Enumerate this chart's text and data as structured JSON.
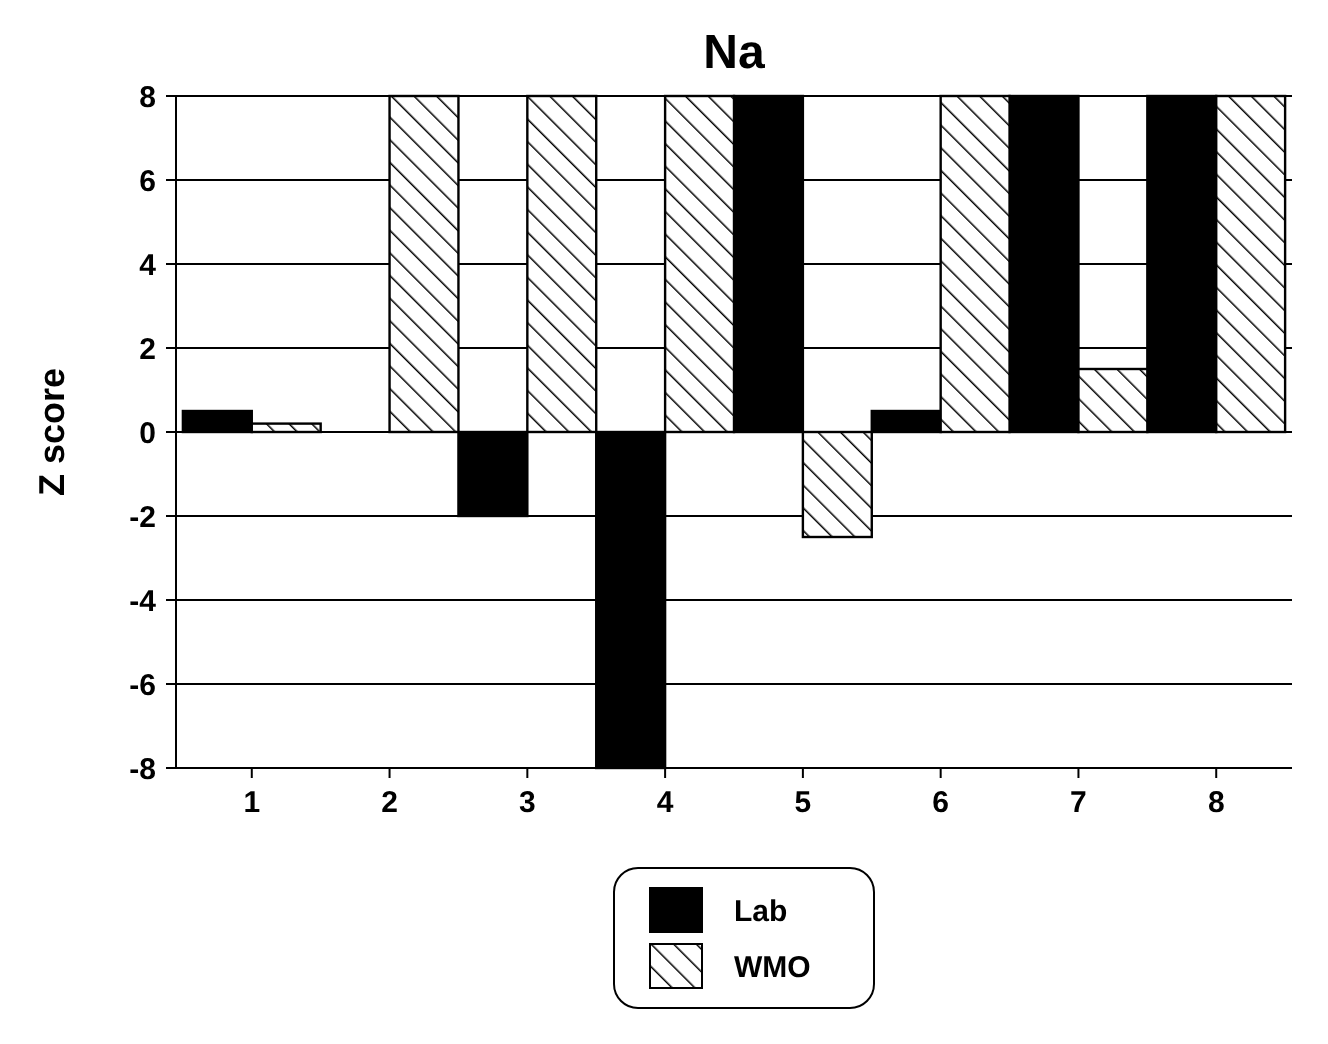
{
  "chart_data": {
    "type": "bar",
    "title": "Na",
    "ylabel": "Z score",
    "categories": [
      "1",
      "2",
      "3",
      "4",
      "5",
      "6",
      "7",
      "8"
    ],
    "series": [
      {
        "name": "Lab",
        "color": "#000000",
        "values": [
          0.5,
          null,
          -2,
          -8,
          8,
          0.5,
          8,
          8
        ]
      },
      {
        "name": "WMO",
        "color": "#000000",
        "values": [
          0.2,
          8,
          8,
          8,
          -2.5,
          8,
          1.5,
          8
        ]
      }
    ],
    "ylim": [
      -8,
      8
    ],
    "yticks": [
      -8,
      -6,
      -4,
      -2,
      0,
      2,
      4,
      6,
      8
    ],
    "grid": "y",
    "legend": "bottom"
  }
}
